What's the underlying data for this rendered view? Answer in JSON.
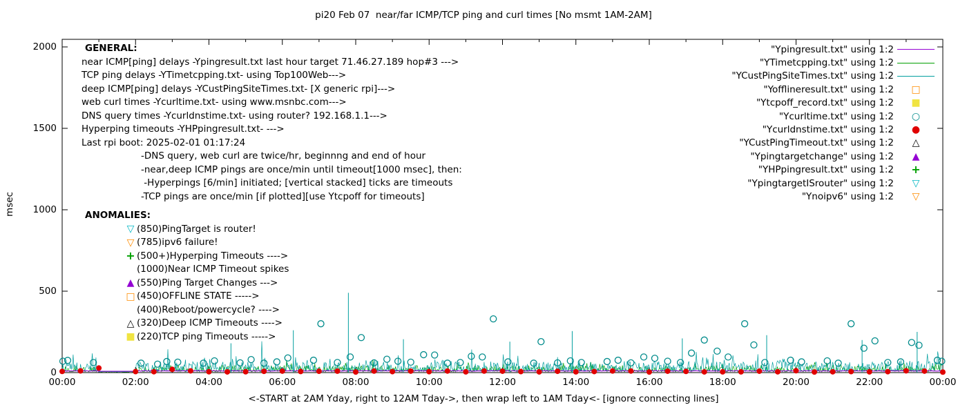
{
  "general": {
    "heading": "GENERAL:",
    "lines": [
      "near ICMP[ping] delays -Ypingresult.txt last hour target 71.46.27.189 hop#3 --->",
      "TCP ping delays -YTimetcpping.txt- using Top100Web--->",
      "deep ICMP[ping] delays -YCustPingSiteTimes.txt- [X generic rpi]--->",
      "web curl times -Ycurltime.txt- using www.msnbc.com--->",
      "DNS query times -Ycurldnstime.txt- using router? 192.168.1.1--->",
      "Hyperping timeouts -YHPpingresult.txt- --->",
      "Last rpi boot: 2025-02-01 01:17:24"
    ],
    "sub_lines": [
      "-DNS query, web curl are twice/hr, beginnng and end of hour",
      "-near,deep ICMP pings are once/min until timeout[1000 msec], then:",
      " -Hyperpings [6/min] initiated; [vertical stacked] ticks are timeouts",
      "-TCP pings are once/min [if plotted][use Ytcpoff for timeouts]"
    ]
  },
  "anomalies": {
    "heading": "ANOMALIES:",
    "items": [
      {
        "marker": "triangle-down-open",
        "color": "#00b7c3",
        "text": "(850)PingTarget is router!"
      },
      {
        "marker": "triangle-down-open",
        "color": "#ff8c00",
        "text": "(785)ipv6 failure!"
      },
      {
        "marker": "plus",
        "color": "#00a000",
        "text": "(500+)Hyperping Timeouts ---->"
      },
      {
        "marker": "none",
        "color": "",
        "text": "(1000)Near ICMP Timeout spikes"
      },
      {
        "marker": "triangle-up-filled",
        "color": "#9400d3",
        "text": "(550)Ping Target Changes --->"
      },
      {
        "marker": "square-open",
        "color": "#ff8c00",
        "text": "(450)OFFLINE STATE ----->"
      },
      {
        "marker": "none",
        "color": "",
        "text": "(400)Reboot/powercycle? ---->"
      },
      {
        "marker": "triangle-up-open",
        "color": "#000000",
        "text": "(320)Deep ICMP Timeouts ---->"
      },
      {
        "marker": "square-filled",
        "color": "#f0e442",
        "text": "(220)TCP ping Timeouts ----->"
      }
    ]
  },
  "legend": [
    {
      "label": "\"Ypingresult.txt\" using 1:2",
      "sample": "line",
      "color": "#9400d3"
    },
    {
      "label": "\"YTimetcpping.txt\" using 1:2",
      "sample": "line",
      "color": "#00a000"
    },
    {
      "label": "\"YCustPingSiteTimes.txt\" using 1:2",
      "sample": "line",
      "color": "#009e9e"
    },
    {
      "label": "\"Yofflineresult.txt\" using 1:2",
      "sample": "square-open",
      "color": "#ff8c00"
    },
    {
      "label": "\"Ytcpoff_record.txt\" using 1:2",
      "sample": "square-filled",
      "color": "#f0e442"
    },
    {
      "label": "\"Ycurltime.txt\" using 1:2",
      "sample": "circle-open",
      "color": "#008b8b"
    },
    {
      "label": "\"Ycurldnstime.txt\" using 1:2",
      "sample": "circle-filled",
      "color": "#e00000"
    },
    {
      "label": "\"YCustPingTimeout.txt\" using 1:2",
      "sample": "triangle-up-open",
      "color": "#000000"
    },
    {
      "label": "\"Ypingtargetchange\" using 1:2",
      "sample": "triangle-up-filled",
      "color": "#9400d3"
    },
    {
      "label": "\"YHPpingresult.txt\" using 1:2",
      "sample": "plus",
      "color": "#00a000"
    },
    {
      "label": "\"YpingtargetISrouter\" using 1:2",
      "sample": "triangle-down-open",
      "color": "#00b7c3"
    },
    {
      "label": "\"Ynoipv6\" using 1:2",
      "sample": "triangle-down-open",
      "color": "#ff8c00"
    }
  ],
  "chart_data": {
    "type": "line",
    "title": "pi20 Feb 07  near/far ICMP/TCP ping and curl times [No msmt 1AM-2AM]",
    "xlabel": "<-START at 2AM Yday, right to 12AM Tday->, then wrap left to 1AM Tday<- [ignore connecting lines]",
    "ylabel": "msec",
    "x_range_hours": [
      0,
      24
    ],
    "x_ticks_major": [
      "00:00",
      "02:00",
      "04:00",
      "06:00",
      "08:00",
      "10:00",
      "12:00",
      "14:00",
      "16:00",
      "18:00",
      "20:00",
      "22:00",
      "00:00"
    ],
    "y_ticks": [
      0,
      500,
      1000,
      1500,
      2000
    ],
    "ylim": [
      0,
      2050
    ],
    "grid": false,
    "legend_position": "top-right",
    "no_measurement_window_hours": [
      1,
      2
    ],
    "noise_seed": 20250207,
    "series": [
      {
        "name": "near ICMP ping delay (Ypingresult)",
        "style": "line",
        "color": "#9400d3",
        "typical_ms": 10
      },
      {
        "name": "TCP ping delay (YTimetcpping)",
        "style": "line",
        "color": "#00a000",
        "band_ms": [
          5,
          80
        ]
      },
      {
        "name": "deep ICMP ping delay (YCustPingSiteTimes)",
        "style": "line",
        "color": "#009e9e",
        "band_ms": [
          8,
          150
        ]
      },
      {
        "name": "web curl time (Ycurltime)",
        "style": "circle-open",
        "color": "#008b8b",
        "points": [
          [
            0.02,
            70
          ],
          [
            0.15,
            75
          ],
          [
            0.85,
            62
          ],
          [
            2.15,
            58
          ],
          [
            2.6,
            52
          ],
          [
            2.85,
            68
          ],
          [
            3.15,
            64
          ],
          [
            3.85,
            58
          ],
          [
            4.15,
            72
          ],
          [
            4.85,
            60
          ],
          [
            5.15,
            80
          ],
          [
            5.5,
            58
          ],
          [
            5.85,
            66
          ],
          [
            6.15,
            90
          ],
          [
            6.85,
            76
          ],
          [
            7.05,
            300
          ],
          [
            7.5,
            62
          ],
          [
            7.85,
            96
          ],
          [
            8.15,
            215
          ],
          [
            8.5,
            60
          ],
          [
            8.85,
            82
          ],
          [
            9.15,
            70
          ],
          [
            9.5,
            64
          ],
          [
            9.85,
            110
          ],
          [
            10.15,
            108
          ],
          [
            10.5,
            58
          ],
          [
            10.85,
            62
          ],
          [
            11.15,
            100
          ],
          [
            11.45,
            96
          ],
          [
            11.75,
            330
          ],
          [
            12.15,
            66
          ],
          [
            12.85,
            58
          ],
          [
            13.05,
            190
          ],
          [
            13.5,
            60
          ],
          [
            13.85,
            72
          ],
          [
            14.15,
            62
          ],
          [
            14.85,
            68
          ],
          [
            15.15,
            76
          ],
          [
            15.5,
            60
          ],
          [
            15.85,
            96
          ],
          [
            16.15,
            88
          ],
          [
            16.5,
            70
          ],
          [
            16.85,
            62
          ],
          [
            17.15,
            120
          ],
          [
            17.5,
            200
          ],
          [
            17.85,
            132
          ],
          [
            18.15,
            96
          ],
          [
            18.6,
            300
          ],
          [
            18.85,
            170
          ],
          [
            19.15,
            62
          ],
          [
            19.85,
            76
          ],
          [
            20.15,
            66
          ],
          [
            20.85,
            72
          ],
          [
            21.15,
            58
          ],
          [
            21.5,
            300
          ],
          [
            21.85,
            150
          ],
          [
            22.15,
            195
          ],
          [
            22.5,
            62
          ],
          [
            22.85,
            66
          ],
          [
            23.15,
            185
          ],
          [
            23.35,
            168
          ],
          [
            23.85,
            76
          ],
          [
            23.97,
            70
          ]
        ]
      },
      {
        "name": "DNS query time (Ycurldnstime)",
        "style": "circle-filled",
        "color": "#e00000",
        "interval_hours": 0.5,
        "typical_ms": 8,
        "outliers": [
          [
            1.0,
            28
          ],
          [
            3.0,
            20
          ]
        ]
      }
    ],
    "deep_icmp_spikes_ms": [
      [
        4.6,
        180
      ],
      [
        6.3,
        260
      ],
      [
        7.8,
        490
      ],
      [
        9.3,
        205
      ],
      [
        12.2,
        190
      ],
      [
        13.9,
        255
      ],
      [
        16.9,
        210
      ],
      [
        19.2,
        230
      ],
      [
        21.8,
        200
      ],
      [
        23.3,
        250
      ]
    ]
  }
}
